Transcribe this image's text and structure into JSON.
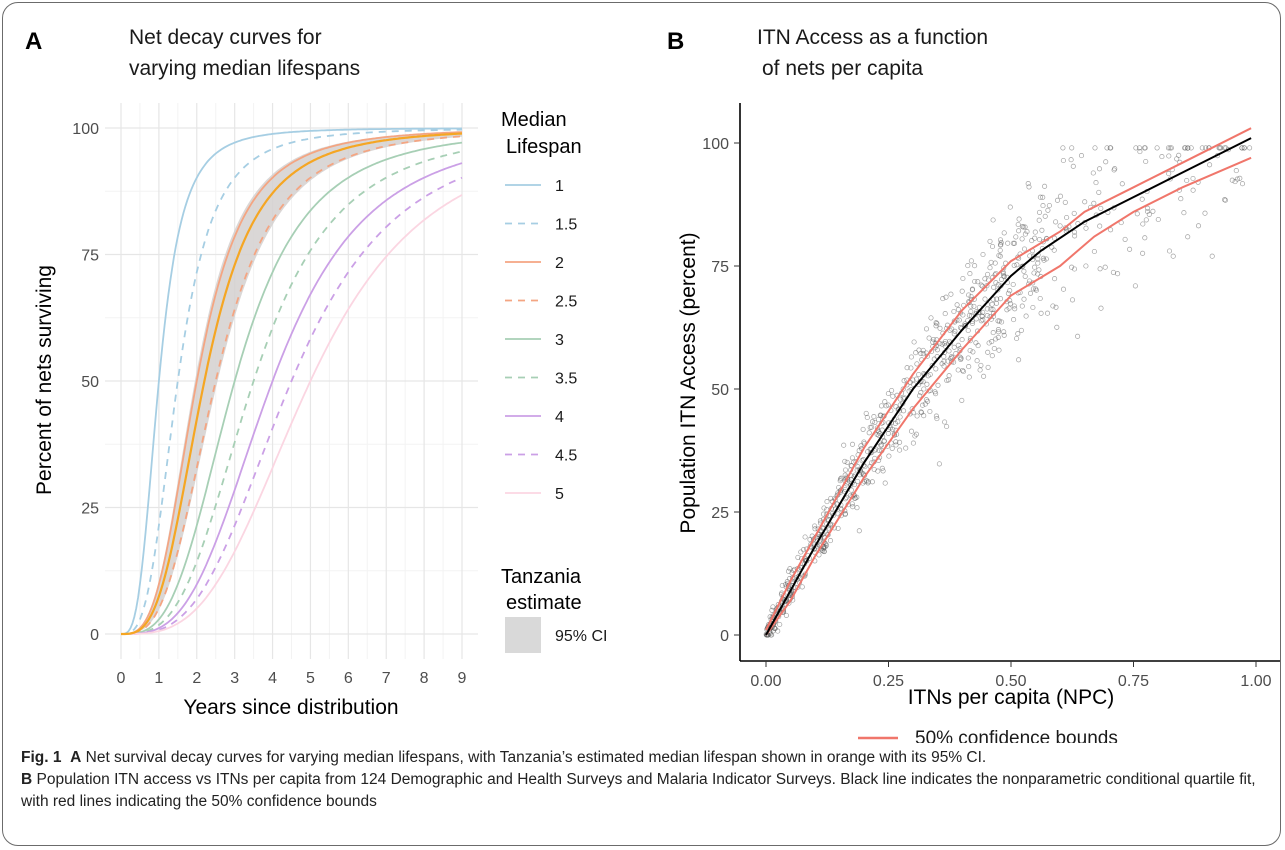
{
  "panel_a": {
    "letter": "A",
    "title_lines": [
      "Net decay curves for",
      "varying median lifespans"
    ],
    "xlabel": "Years since distribution",
    "ylabel": "Percent of nets surviving",
    "legend_title_lines": [
      "Median",
      "Lifespan"
    ],
    "ci_legend_title_lines": [
      "Tanzania",
      "estimate"
    ],
    "ci_label": "95% CI"
  },
  "panel_b": {
    "letter": "B",
    "title_lines": [
      "ITN Access as a function",
      "of nets per capita"
    ],
    "xlabel": "ITNs per capita (NPC)",
    "ylabel": "Population ITN Access (percent)",
    "legend_label": "50% confidence bounds"
  },
  "caption": {
    "fig_label": "Fig. 1",
    "a_label": "A",
    "a_text": "Net survival decay curves for varying median lifespans, with Tanzania’s estimated median lifespan shown in orange with its 95% CI.",
    "b_label": "B",
    "b_text": "Population ITN access vs ITNs per capita from 124 Demographic and Health Surveys and Malaria Indicator Surveys. Black line indicates the nonparametric conditional quartile fit, with red lines indicating the 50% confidence bounds"
  },
  "chart_data": [
    {
      "type": "line",
      "title": "Net decay curves for varying median lifespans",
      "xlabel": "Years since distribution",
      "ylabel": "Percent of nets surviving",
      "xlim": [
        0,
        9
      ],
      "ylim": [
        0,
        100
      ],
      "xticks": [
        0,
        1,
        2,
        3,
        4,
        5,
        6,
        7,
        8,
        9
      ],
      "yticks": [
        0,
        25,
        50,
        75,
        100
      ],
      "grid": true,
      "legend_position": "right",
      "legend_title": "Median Lifespan",
      "series": [
        {
          "name": "1",
          "median": 1,
          "color": "#a6cee3",
          "dash": "solid"
        },
        {
          "name": "1.5",
          "median": 1.5,
          "color": "#a6cee3",
          "dash": "dashed"
        },
        {
          "name": "2",
          "median": 2,
          "color": "#f4a582",
          "dash": "solid"
        },
        {
          "name": "2.5",
          "median": 2.5,
          "color": "#f4a582",
          "dash": "dashed"
        },
        {
          "name": "3",
          "median": 3,
          "color": "#a7cfb5",
          "dash": "solid"
        },
        {
          "name": "3.5",
          "median": 3.5,
          "color": "#a7cfb5",
          "dash": "dashed"
        },
        {
          "name": "4",
          "median": 4,
          "color": "#cba0e6",
          "dash": "solid"
        },
        {
          "name": "4.5",
          "median": 4.5,
          "color": "#cba0e6",
          "dash": "dashed"
        },
        {
          "name": "5",
          "median": 5,
          "color": "#fbd6e2",
          "dash": "solid"
        }
      ],
      "tanzania_estimate": {
        "median": 2.2,
        "ci_low": 1.95,
        "ci_high": 2.55,
        "color": "#f5a623",
        "ci_color": "#d3d0cf"
      },
      "ci_legend_title": "Tanzania estimate",
      "ci_legend_label": "95% CI"
    },
    {
      "type": "scatter",
      "title": "ITN Access as a function of nets per capita",
      "xlabel": "ITNs per capita (NPC)",
      "ylabel": "Population ITN Access (percent)",
      "xlim": [
        0,
        1
      ],
      "ylim": [
        0,
        100
      ],
      "xticks": [
        0.0,
        0.25,
        0.5,
        0.75,
        1.0
      ],
      "xtick_labels": [
        "0.00",
        "0.25",
        "0.50",
        "0.75",
        "1.00"
      ],
      "yticks": [
        0,
        25,
        50,
        75,
        100
      ],
      "grid": false,
      "legend_position": "bottom",
      "points_count": 900,
      "fit_line": {
        "color": "#000000",
        "x": [
          0,
          0.05,
          0.1,
          0.2,
          0.3,
          0.4,
          0.5,
          0.56,
          0.65,
          0.75,
          0.85,
          0.99
        ],
        "y": [
          0,
          9,
          18,
          35,
          50,
          62,
          73,
          78,
          84,
          89,
          94,
          101
        ]
      },
      "upper_bound": {
        "name": "50% confidence bounds",
        "color": "#f0766b",
        "x": [
          0,
          0.05,
          0.1,
          0.2,
          0.3,
          0.4,
          0.5,
          0.6,
          0.65,
          0.75,
          0.85,
          0.99
        ],
        "y": [
          1,
          11,
          20,
          38,
          53,
          66,
          76,
          82,
          86,
          91,
          96,
          103
        ]
      },
      "lower_bound": {
        "name": "50% confidence bounds",
        "color": "#f0766b",
        "x": [
          0,
          0.05,
          0.1,
          0.2,
          0.3,
          0.4,
          0.5,
          0.6,
          0.67,
          0.75,
          0.85,
          0.99
        ],
        "y": [
          0,
          7,
          16,
          32,
          46,
          58,
          69,
          75,
          81,
          86,
          91,
          97
        ]
      },
      "legend_label": "50% confidence bounds"
    }
  ]
}
